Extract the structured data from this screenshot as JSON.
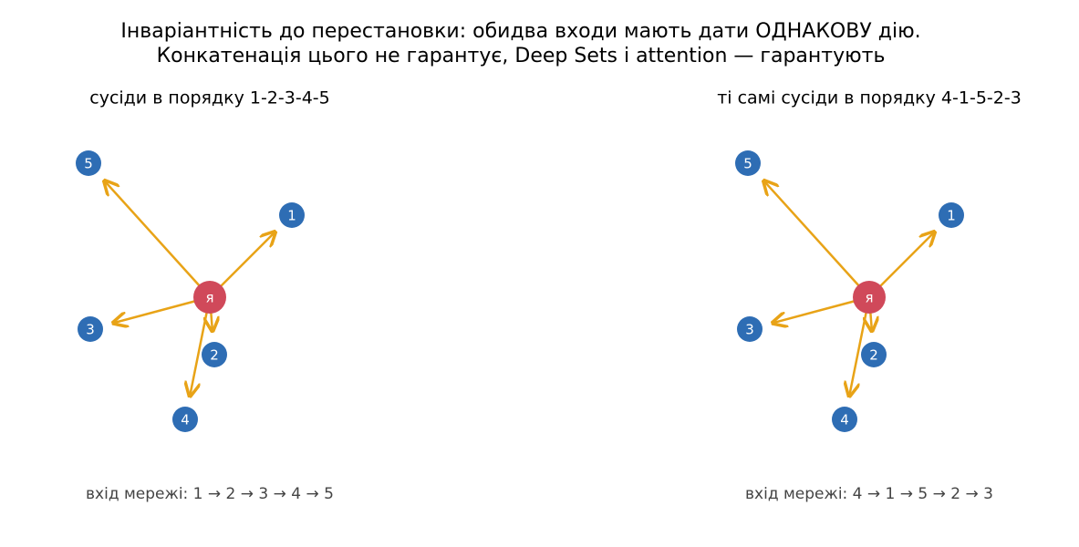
{
  "title": {
    "line1": "Інваріантність до перестановки: обидва входи мають дати ОДНАКОВУ дію.",
    "line2": "Конкатенація цього не гарантує, Deep Sets і attention — гарантують"
  },
  "panels": [
    {
      "title": "сусіди в порядку 1-2-3-4-5",
      "center": "я",
      "nodes": [
        "1",
        "2",
        "3",
        "4",
        "5"
      ],
      "footer": "вхід мережі: 1 → 2 → 3 → 4 → 5"
    },
    {
      "title": "ті самі сусіди в порядку 4-1-5-2-3",
      "center": "я",
      "nodes": [
        "1",
        "2",
        "3",
        "4",
        "5"
      ],
      "footer": "вхід мережі: 4 → 1 → 5 → 2 → 3"
    }
  ]
}
